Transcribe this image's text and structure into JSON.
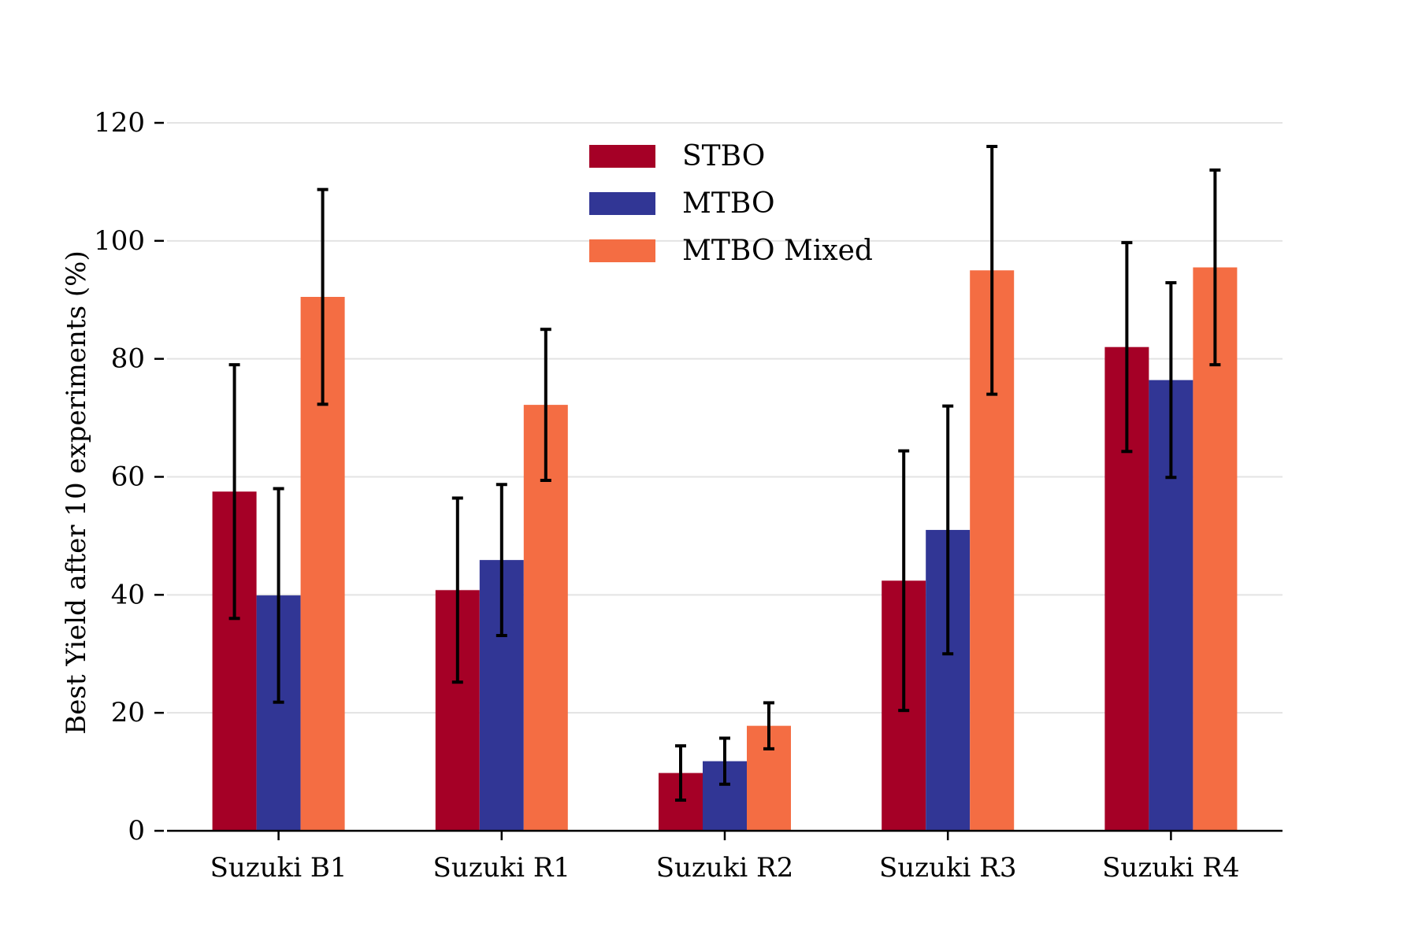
{
  "chart_data": {
    "type": "bar",
    "title": "",
    "xlabel": "",
    "ylabel": "Best Yield after 10 experiments (%)",
    "ylim": [
      0,
      120
    ],
    "yticks": [
      0,
      20,
      40,
      60,
      80,
      100,
      120
    ],
    "grid": "horizontal",
    "legend_position": "top-center",
    "categories": [
      "Suzuki B1",
      "Suzuki R1",
      "Suzuki R2",
      "Suzuki R3",
      "Suzuki R4"
    ],
    "series": [
      {
        "name": "STBO",
        "color": "#a50026",
        "values": [
          57.5,
          40.8,
          9.8,
          42.4,
          82.0
        ],
        "error": [
          21.5,
          15.6,
          4.6,
          22.0,
          17.7
        ]
      },
      {
        "name": "MTBO",
        "color": "#313695",
        "values": [
          39.9,
          45.9,
          11.8,
          51.0,
          76.4
        ],
        "error": [
          18.1,
          12.8,
          3.9,
          21.0,
          16.5
        ]
      },
      {
        "name": "MTBO Mixed",
        "color": "#f46d43",
        "values": [
          90.5,
          72.2,
          17.8,
          95.0,
          95.5
        ],
        "error": [
          18.2,
          12.8,
          3.9,
          21.0,
          16.5
        ]
      }
    ]
  }
}
